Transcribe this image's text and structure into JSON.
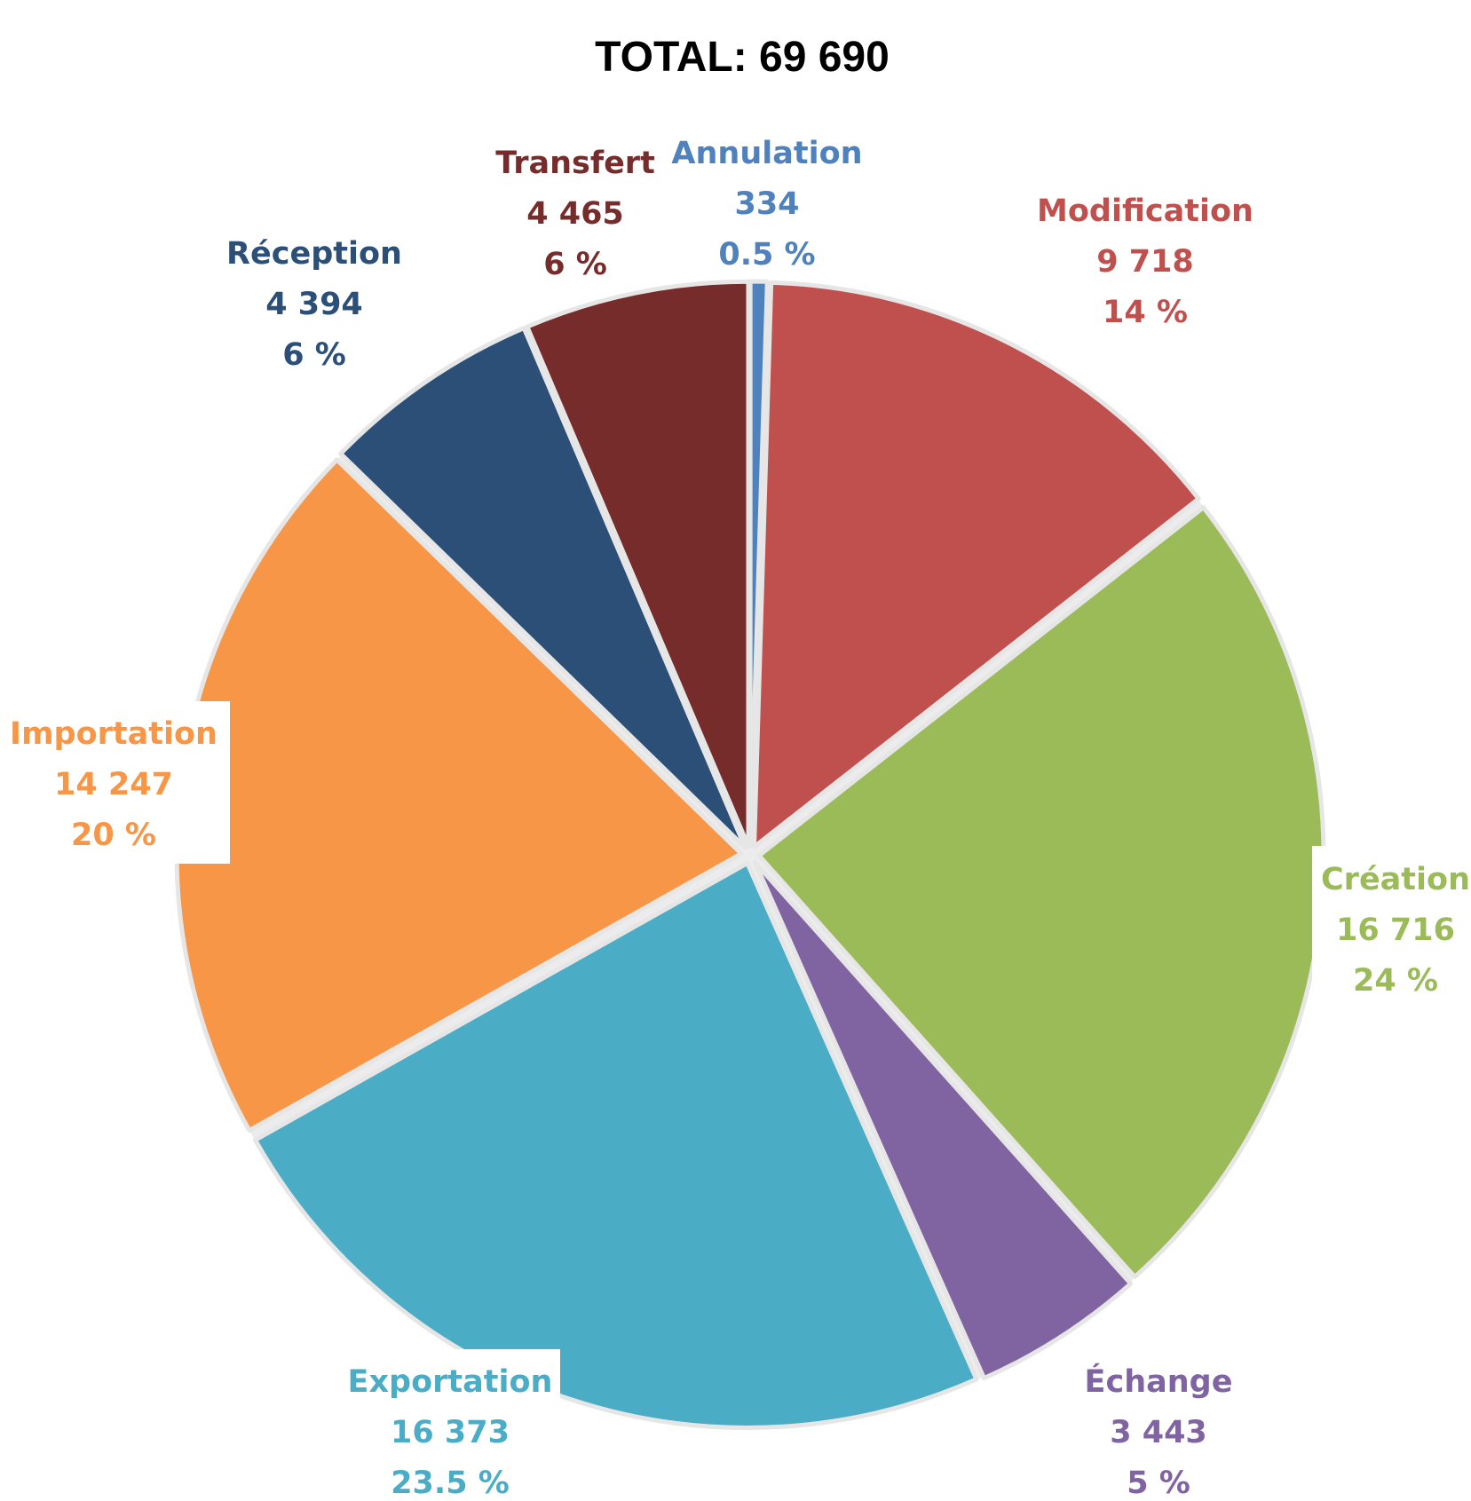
{
  "chart_data": {
    "type": "pie",
    "title": "TOTAL: 69 690",
    "start_angle_deg": 0,
    "direction": "clockwise",
    "slices": [
      {
        "name": "Annulation",
        "value_label": "334",
        "value": 334,
        "percent_label": "0.5 %",
        "color": "#4f81bd"
      },
      {
        "name": "Modification",
        "value_label": "9 718",
        "value": 9718,
        "percent_label": "14 %",
        "color": "#c0504d"
      },
      {
        "name": "Création",
        "value_label": "16 716",
        "value": 16716,
        "percent_label": "24 %",
        "color": "#9bbb59"
      },
      {
        "name": "Échange",
        "value_label": "3 443",
        "value": 3443,
        "percent_label": "5 %",
        "color": "#8064a2"
      },
      {
        "name": "Exportation",
        "value_label": "16 373",
        "value": 16373,
        "percent_label": "23.5 %",
        "color": "#4bacc6"
      },
      {
        "name": "Importation",
        "value_label": "14 247",
        "value": 14247,
        "percent_label": "20 %",
        "color": "#f79646"
      },
      {
        "name": "Réception",
        "value_label": "4 394",
        "value": 4394,
        "percent_label": "6 %",
        "color": "#2c4f77"
      },
      {
        "name": "Transfert",
        "value_label": "4 465",
        "value": 4465,
        "percent_label": "6 %",
        "color": "#772c2c"
      }
    ]
  }
}
